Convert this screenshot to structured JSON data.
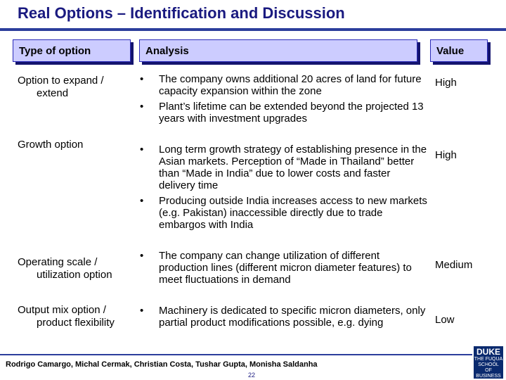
{
  "title": "Real Options – Identification and Discussion",
  "headers": {
    "type": "Type of option",
    "analysis": "Analysis",
    "value": "Value"
  },
  "rows": [
    {
      "option_line1": "Option to expand /",
      "option_line2": "extend",
      "bullets": [
        "The company owns additional 20 acres of land for future capacity expansion within the zone",
        "Plant’s lifetime can be extended beyond the projected 13 years with investment upgrades"
      ],
      "value": "High"
    },
    {
      "option_line1": "Growth option",
      "option_line2": "",
      "bullets": [
        "Long term growth strategy of establishing presence in the Asian markets. Perception of “Made in Thailand” better than “Made in India” due to lower costs and faster delivery time",
        "Producing outside India increases access to new markets (e.g. Pakistan) inaccessible directly due to trade embargos with India"
      ],
      "value": "High"
    },
    {
      "option_line1": "Operating scale /",
      "option_line2": "utilization option",
      "bullets": [
        "The company can change utilization of different production lines (different micron diameter features) to meet fluctuations in demand"
      ],
      "value": "Medium"
    },
    {
      "option_line1": "Output mix option /",
      "option_line2": "product flexibility",
      "bullets": [
        "Machinery is dedicated to specific micron diameters, only partial product modifications possible, e.g. dying"
      ],
      "value": "Low"
    }
  ],
  "bullet_symbol": "•",
  "footer": "Rodrigo Camargo, Michal Cermak, Christian Costa, Tushar Gupta, Monisha Saldanha",
  "page_number": "22",
  "logo": {
    "line1": "DUKE",
    "line2": "THE FUQUA",
    "line3": "SCHOOL",
    "line4": "OF BUSINESS"
  }
}
